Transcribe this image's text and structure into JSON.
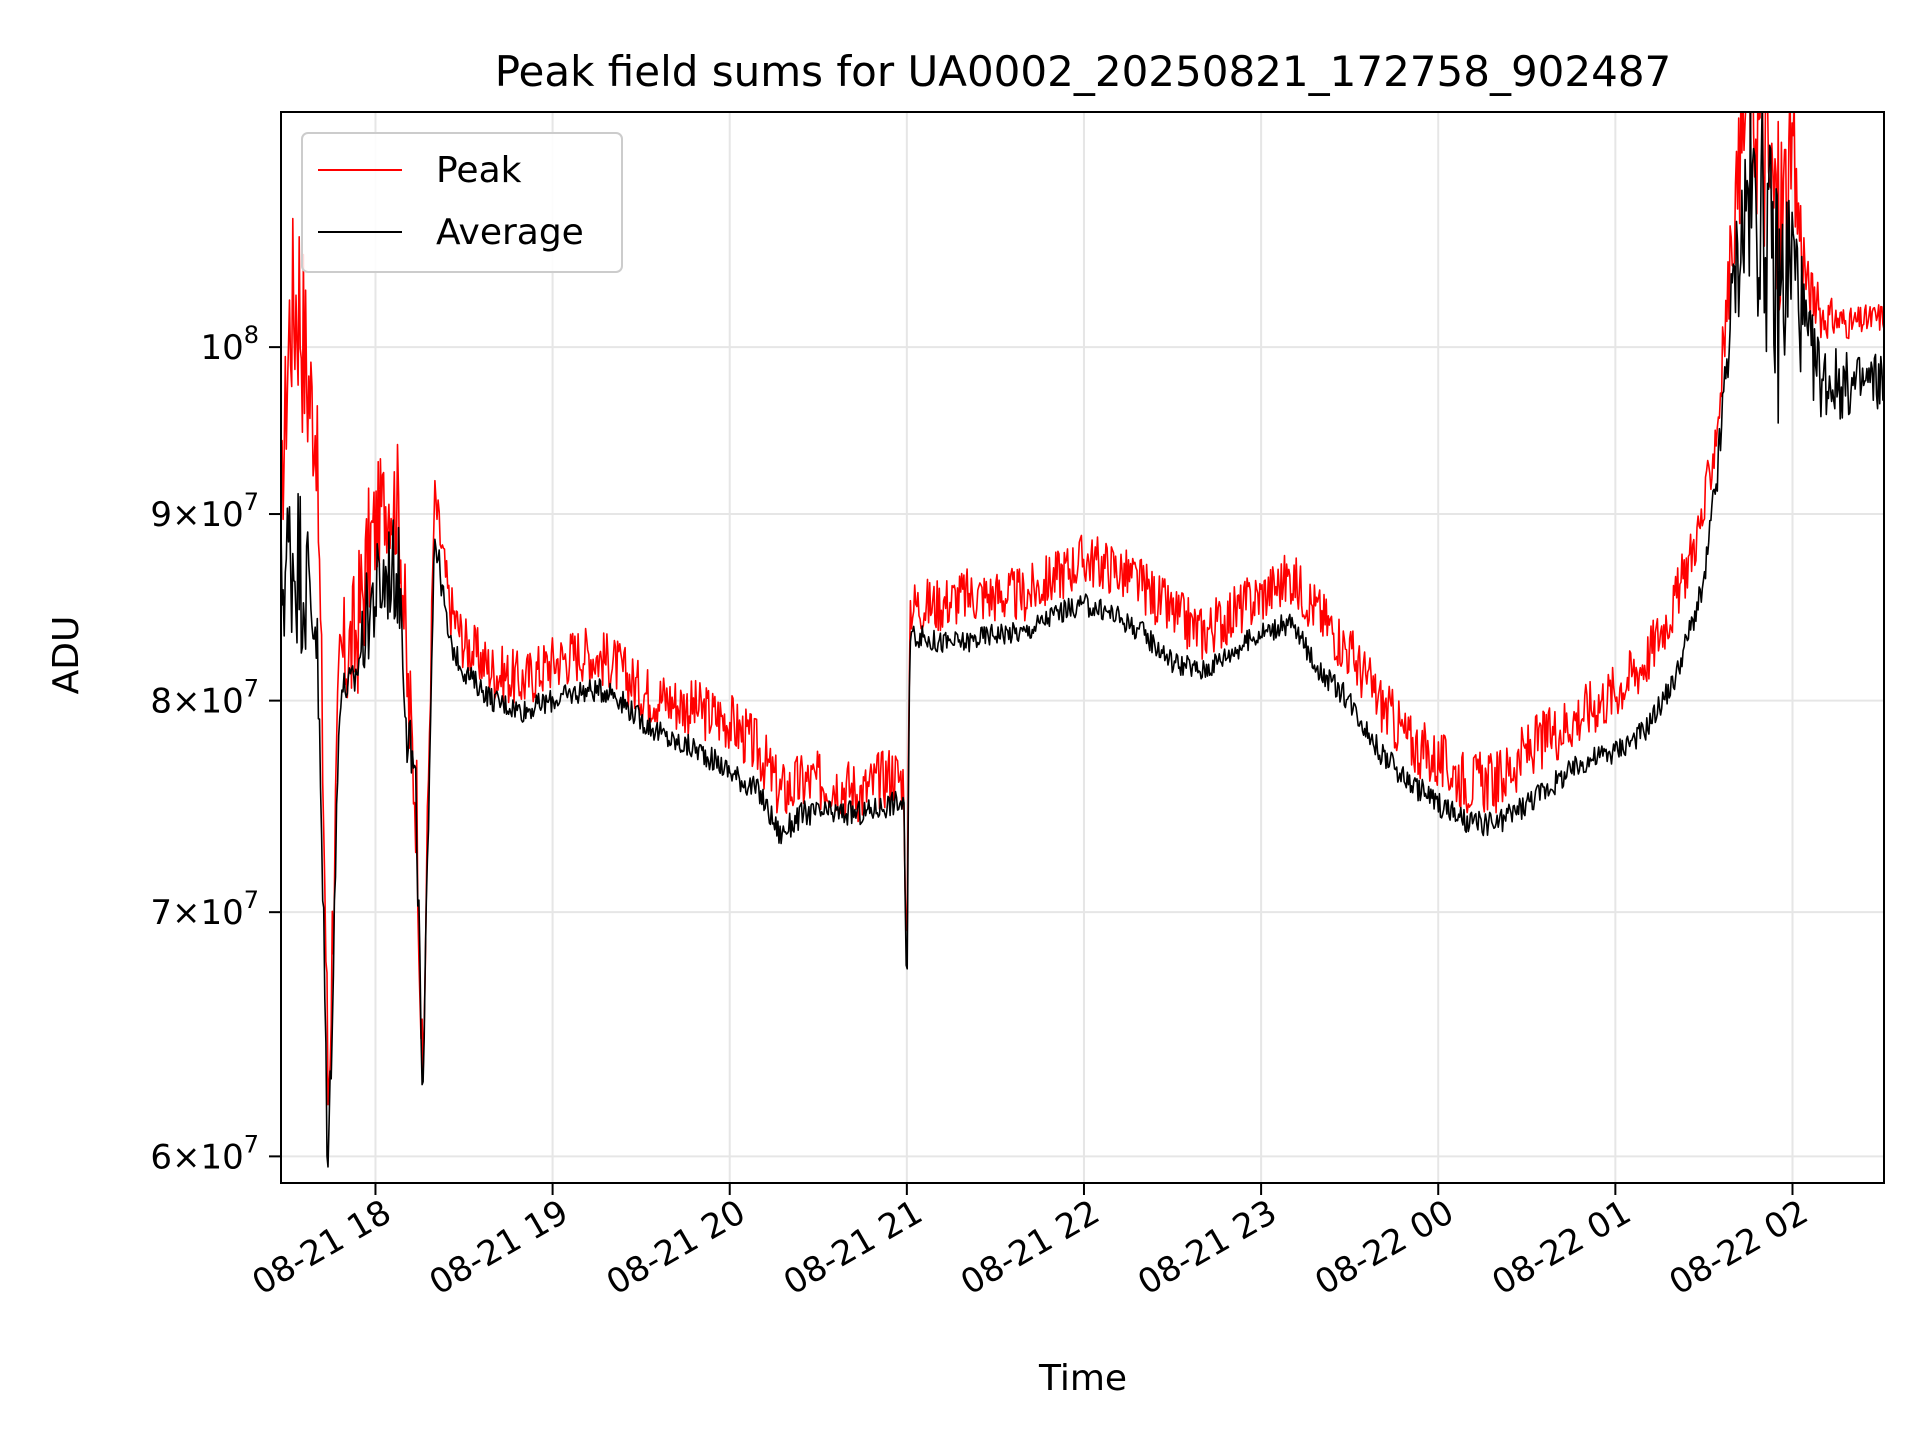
{
  "chart_data": {
    "type": "line",
    "title": "Peak field sums for UA0002_20250821_172758_902487",
    "xlabel": "Time",
    "ylabel": "ADU",
    "y_scale": "log",
    "grid": true,
    "legend_position": "upper-left",
    "xlim": [
      "2025-08-21 17:28",
      "2025-08-22 02:31"
    ],
    "ylim": [
      59000000,
      116000000
    ],
    "x_ticks": [
      "08-21 18",
      "08-21 19",
      "08-21 20",
      "08-21 21",
      "08-21 22",
      "08-21 23",
      "08-22 00",
      "08-22 01",
      "08-22 02"
    ],
    "y_ticks": [
      {
        "value": 60000000,
        "mantissa": "6",
        "exponent": "7"
      },
      {
        "value": 70000000,
        "mantissa": "7",
        "exponent": "7"
      },
      {
        "value": 80000000,
        "mantissa": "8",
        "exponent": "7"
      },
      {
        "value": 90000000,
        "mantissa": "9",
        "exponent": "7"
      },
      {
        "value": 100000000,
        "mantissa": "",
        "exponent": "8"
      }
    ],
    "series": [
      {
        "name": "Peak",
        "color": "#ff0000",
        "x": [
          "2025-08-21 17:28",
          "2025-08-21 17:31",
          "2025-08-21 17:34",
          "2025-08-21 17:37",
          "2025-08-21 17:40",
          "2025-08-21 17:44",
          "2025-08-21 17:48",
          "2025-08-21 17:53",
          "2025-08-21 17:58",
          "2025-08-21 18:02",
          "2025-08-21 18:05",
          "2025-08-21 18:08",
          "2025-08-21 18:11",
          "2025-08-21 18:14",
          "2025-08-21 18:16",
          "2025-08-21 18:20",
          "2025-08-21 18:25",
          "2025-08-21 18:30",
          "2025-08-21 18:40",
          "2025-08-21 18:50",
          "2025-08-21 19:00",
          "2025-08-21 19:10",
          "2025-08-21 19:20",
          "2025-08-21 19:30",
          "2025-08-21 19:40",
          "2025-08-21 19:50",
          "2025-08-21 20:00",
          "2025-08-21 20:10",
          "2025-08-21 20:17",
          "2025-08-21 20:25",
          "2025-08-21 20:35",
          "2025-08-21 20:45",
          "2025-08-21 20:55",
          "2025-08-21 20:59",
          "2025-08-21 21:00",
          "2025-08-21 21:01",
          "2025-08-21 21:10",
          "2025-08-21 21:20",
          "2025-08-21 21:30",
          "2025-08-21 21:40",
          "2025-08-21 21:50",
          "2025-08-21 22:00",
          "2025-08-21 22:10",
          "2025-08-21 22:20",
          "2025-08-21 22:30",
          "2025-08-21 22:40",
          "2025-08-21 22:50",
          "2025-08-21 23:00",
          "2025-08-21 23:10",
          "2025-08-21 23:20",
          "2025-08-21 23:30",
          "2025-08-21 23:40",
          "2025-08-21 23:50",
          "2025-08-22 00:00",
          "2025-08-22 00:10",
          "2025-08-22 00:20",
          "2025-08-22 00:30",
          "2025-08-22 00:40",
          "2025-08-22 00:50",
          "2025-08-22 01:00",
          "2025-08-22 01:10",
          "2025-08-22 01:20",
          "2025-08-22 01:30",
          "2025-08-22 01:35",
          "2025-08-22 01:40",
          "2025-08-22 01:45",
          "2025-08-22 01:50",
          "2025-08-22 01:55",
          "2025-08-22 02:00",
          "2025-08-22 02:05",
          "2025-08-22 02:10",
          "2025-08-22 02:20",
          "2025-08-22 02:31"
        ],
        "y": [
          90000000,
          102000000,
          104000000,
          98000000,
          95000000,
          62000000,
          82000000,
          83000000,
          88000000,
          90500000,
          91000000,
          90500000,
          80000000,
          75000000,
          62000000,
          91000000,
          85000000,
          83000000,
          81500000,
          81000000,
          82000000,
          82500000,
          82000000,
          80500000,
          80000000,
          79500000,
          79000000,
          77500000,
          75500000,
          76000000,
          76000000,
          75500000,
          76500000,
          76000000,
          66500000,
          85000000,
          85000000,
          85500000,
          85500000,
          85500000,
          86500000,
          87500000,
          87000000,
          86000000,
          84500000,
          83500000,
          84500000,
          85500000,
          86500000,
          84500000,
          82500000,
          80000000,
          78000000,
          77000000,
          76000000,
          76000000,
          77500000,
          78500000,
          79500000,
          80500000,
          82000000,
          85000000,
          90000000,
          96000000,
          108000000,
          118000000,
          114000000,
          108000000,
          112000000,
          104000000,
          102000000,
          101500000,
          102000000
        ],
        "band": [
          3000000,
          6000000,
          8000000,
          6000000,
          4000000,
          3000000,
          3000000,
          4000000,
          4000000,
          3000000,
          3000000,
          4000000,
          4000000,
          3000000,
          2000000,
          1500000,
          1500000,
          1500000,
          1500000,
          1500000,
          1500000,
          1500000,
          1500000,
          1500000,
          1500000,
          1500000,
          1500000,
          1500000,
          1500000,
          1500000,
          1500000,
          1500000,
          1500000,
          1500000,
          1000000,
          1500000,
          1500000,
          1500000,
          1500000,
          1500000,
          1500000,
          1500000,
          1500000,
          1500000,
          1500000,
          1500000,
          1500000,
          1500000,
          1500000,
          1500000,
          1500000,
          1500000,
          1500000,
          1500000,
          1500000,
          1500000,
          1500000,
          1500000,
          1500000,
          1500000,
          1500000,
          1500000,
          1500000,
          2000000,
          3000000,
          6000000,
          8000000,
          8000000,
          6000000,
          2000000,
          1500000,
          1000000,
          1000000
        ]
      },
      {
        "name": "Average",
        "color": "#000000",
        "x": [
          "2025-08-21 17:28",
          "2025-08-21 17:31",
          "2025-08-21 17:34",
          "2025-08-21 17:37",
          "2025-08-21 17:40",
          "2025-08-21 17:44",
          "2025-08-21 17:48",
          "2025-08-21 17:53",
          "2025-08-21 17:58",
          "2025-08-21 18:02",
          "2025-08-21 18:05",
          "2025-08-21 18:08",
          "2025-08-21 18:11",
          "2025-08-21 18:14",
          "2025-08-21 18:16",
          "2025-08-21 18:20",
          "2025-08-21 18:25",
          "2025-08-21 18:30",
          "2025-08-21 18:40",
          "2025-08-21 18:50",
          "2025-08-21 19:00",
          "2025-08-21 19:10",
          "2025-08-21 19:20",
          "2025-08-21 19:30",
          "2025-08-21 19:40",
          "2025-08-21 19:50",
          "2025-08-21 20:00",
          "2025-08-21 20:10",
          "2025-08-21 20:17",
          "2025-08-21 20:25",
          "2025-08-21 20:35",
          "2025-08-21 20:45",
          "2025-08-21 20:55",
          "2025-08-21 20:59",
          "2025-08-21 21:00",
          "2025-08-21 21:01",
          "2025-08-21 21:10",
          "2025-08-21 21:20",
          "2025-08-21 21:30",
          "2025-08-21 21:40",
          "2025-08-21 21:50",
          "2025-08-21 22:00",
          "2025-08-21 22:10",
          "2025-08-21 22:20",
          "2025-08-21 22:30",
          "2025-08-21 22:40",
          "2025-08-21 22:50",
          "2025-08-21 23:00",
          "2025-08-21 23:10",
          "2025-08-21 23:20",
          "2025-08-21 23:30",
          "2025-08-21 23:40",
          "2025-08-21 23:50",
          "2025-08-22 00:00",
          "2025-08-22 00:10",
          "2025-08-22 00:20",
          "2025-08-22 00:30",
          "2025-08-22 00:40",
          "2025-08-22 00:50",
          "2025-08-22 01:00",
          "2025-08-22 01:10",
          "2025-08-22 01:20",
          "2025-08-22 01:30",
          "2025-08-22 01:35",
          "2025-08-22 01:40",
          "2025-08-22 01:45",
          "2025-08-22 01:50",
          "2025-08-22 01:55",
          "2025-08-22 02:00",
          "2025-08-22 02:05",
          "2025-08-22 02:10",
          "2025-08-22 02:20",
          "2025-08-22 02:31"
        ],
        "y": [
          86000000,
          88000000,
          87500000,
          86000000,
          84000000,
          59000000,
          80500000,
          81000000,
          85000000,
          86000000,
          87000000,
          86500000,
          79000000,
          74000000,
          61000000,
          89000000,
          83000000,
          81500000,
          80000000,
          79500000,
          80000000,
          80500000,
          80500000,
          79000000,
          78000000,
          77500000,
          76500000,
          75500000,
          73500000,
          74500000,
          74500000,
          74500000,
          75000000,
          75000000,
          65000000,
          83500000,
          83000000,
          83000000,
          83500000,
          83500000,
          84500000,
          85000000,
          84500000,
          83500000,
          82000000,
          81500000,
          82500000,
          83500000,
          84000000,
          81500000,
          80000000,
          77500000,
          76000000,
          75000000,
          74000000,
          74000000,
          75000000,
          76000000,
          77000000,
          77500000,
          78500000,
          81000000,
          86000000,
          93000000,
          104000000,
          110000000,
          109000000,
          103000000,
          106000000,
          100000000,
          98000000,
          97500000,
          98000000
        ],
        "band": [
          4000000,
          5000000,
          5000000,
          4000000,
          3000000,
          2000000,
          1000000,
          1000000,
          3000000,
          3000000,
          3000000,
          3000000,
          3000000,
          2000000,
          1000000,
          1000000,
          600000,
          600000,
          600000,
          600000,
          600000,
          600000,
          600000,
          600000,
          600000,
          600000,
          600000,
          600000,
          600000,
          600000,
          600000,
          600000,
          600000,
          600000,
          500000,
          600000,
          600000,
          600000,
          600000,
          600000,
          600000,
          600000,
          600000,
          600000,
          600000,
          600000,
          600000,
          600000,
          600000,
          600000,
          600000,
          600000,
          600000,
          600000,
          600000,
          600000,
          600000,
          600000,
          600000,
          600000,
          600000,
          600000,
          800000,
          1500000,
          3000000,
          7000000,
          8000000,
          8000000,
          6000000,
          3000000,
          2500000,
          2000000,
          2000000
        ]
      }
    ]
  }
}
